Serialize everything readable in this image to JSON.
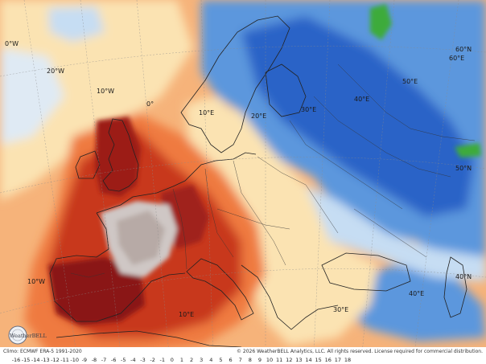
{
  "map": {
    "lon_labels": [
      "0°W",
      "20°W",
      "10°W",
      "0°",
      "10°E",
      "20°E",
      "30°E",
      "40°E",
      "50°E",
      "60°E",
      "10°W",
      "10°E",
      "30°E",
      "40°E"
    ],
    "lat_labels": [
      "60°N",
      "50°N",
      "40°N"
    ],
    "colors": {
      "very_warm": "#7a1410",
      "warm": "#c8391d",
      "mild_warm": "#ef7a3f",
      "slightly_warm": "#f6b37a",
      "near_normal": "#fbe3b2",
      "slightly_cool": "#c6ddf3",
      "cool": "#5b97dd",
      "cold": "#2c63c7",
      "extreme_warm": "#cfc7c5",
      "green": "#3cab3a"
    }
  },
  "footer": {
    "climo": "Climo: ECMWF ERA-5 1991-2020",
    "credit": "© 2026 WeatherBELL Analytics, LLC. All rights reserved. License required for commercial distribution.",
    "logo_text": "WeatherBELL"
  },
  "scale": {
    "ticks": [
      "-16",
      "-15",
      "-14",
      "-13",
      "-12",
      "-11",
      "-10",
      "-9",
      "-8",
      "-7",
      "-6",
      "-5",
      "-4",
      "-3",
      "-2",
      "-1",
      "0",
      "1",
      "2",
      "3",
      "4",
      "5",
      "6",
      "7",
      "8",
      "9",
      "10",
      "11",
      "12",
      "13",
      "14",
      "15",
      "16",
      "17",
      "18"
    ]
  }
}
